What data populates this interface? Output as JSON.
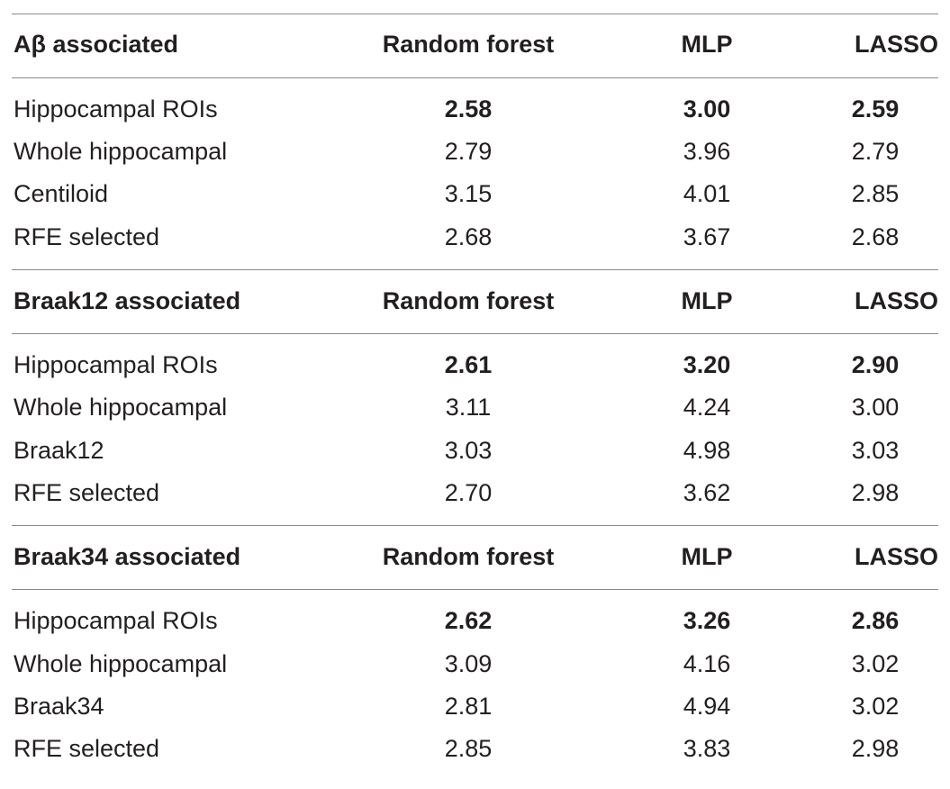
{
  "sections": [
    {
      "header": {
        "label": "Aβ associated",
        "col1": "Random forest",
        "col2": "MLP",
        "col3": "LASSO"
      },
      "rows": [
        {
          "label": "Hippocampal ROIs",
          "rf": "2.58",
          "mlp": "3.00",
          "lasso": "2.59",
          "bold": true
        },
        {
          "label": "Whole hippocampal",
          "rf": "2.79",
          "mlp": "3.96",
          "lasso": "2.79",
          "bold": false
        },
        {
          "label": "Centiloid",
          "rf": "3.15",
          "mlp": "4.01",
          "lasso": "2.85",
          "bold": false
        },
        {
          "label": "RFE selected",
          "rf": "2.68",
          "mlp": "3.67",
          "lasso": "2.68",
          "bold": false
        }
      ]
    },
    {
      "header": {
        "label": "Braak12 associated",
        "col1": "Random forest",
        "col2": "MLP",
        "col3": "LASSO"
      },
      "rows": [
        {
          "label": "Hippocampal ROIs",
          "rf": "2.61",
          "mlp": "3.20",
          "lasso": "2.90",
          "bold": true
        },
        {
          "label": "Whole hippocampal",
          "rf": "3.11",
          "mlp": "4.24",
          "lasso": "3.00",
          "bold": false
        },
        {
          "label": "Braak12",
          "rf": "3.03",
          "mlp": "4.98",
          "lasso": "3.03",
          "bold": false
        },
        {
          "label": "RFE selected",
          "rf": "2.70",
          "mlp": "3.62",
          "lasso": "2.98",
          "bold": false
        }
      ]
    },
    {
      "header": {
        "label": "Braak34 associated",
        "col1": "Random forest",
        "col2": "MLP",
        "col3": "LASSO"
      },
      "rows": [
        {
          "label": "Hippocampal ROIs",
          "rf": "2.62",
          "mlp": "3.26",
          "lasso": "2.86",
          "bold": true
        },
        {
          "label": "Whole hippocampal",
          "rf": "3.09",
          "mlp": "4.16",
          "lasso": "3.02",
          "bold": false
        },
        {
          "label": "Braak34",
          "rf": "2.81",
          "mlp": "4.94",
          "lasso": "3.02",
          "bold": false
        },
        {
          "label": "RFE selected",
          "rf": "2.85",
          "mlp": "3.83",
          "lasso": "2.98",
          "bold": false
        }
      ]
    }
  ]
}
